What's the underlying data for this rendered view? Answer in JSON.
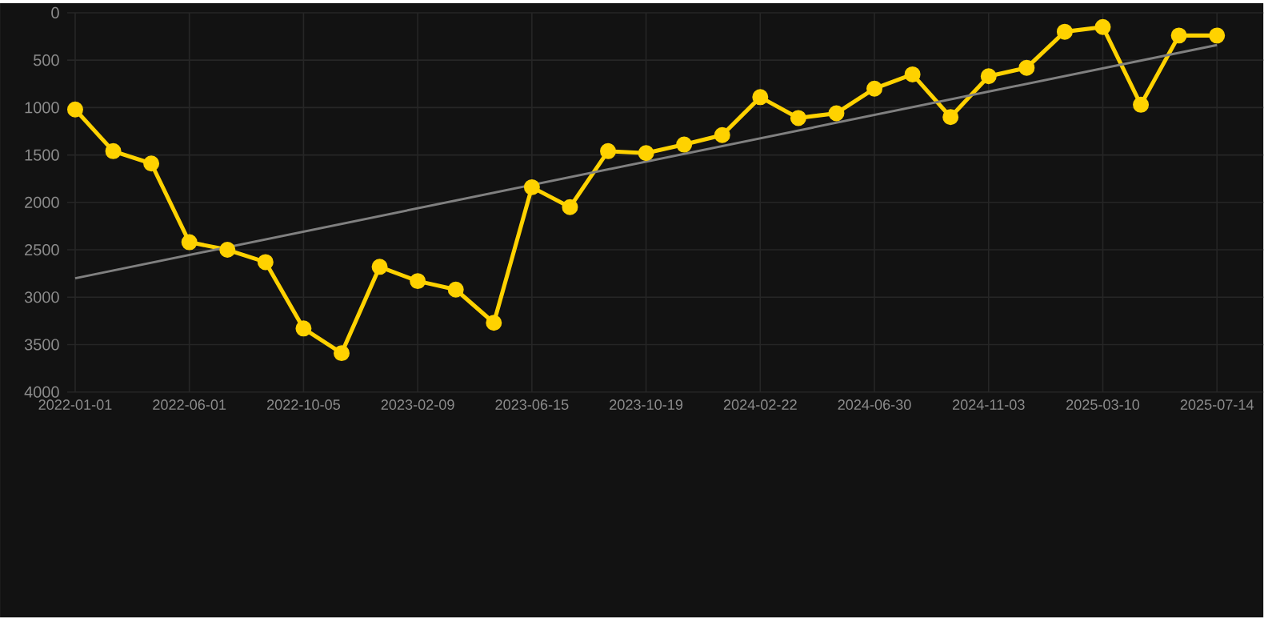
{
  "chart_data": {
    "type": "line",
    "categories": [
      "2022-01-01",
      null,
      null,
      "2022-06-01",
      null,
      null,
      "2022-10-05",
      null,
      null,
      "2023-02-09",
      null,
      null,
      "2023-06-15",
      null,
      null,
      "2023-10-19",
      null,
      null,
      "2024-02-22",
      null,
      null,
      "2024-06-30",
      null,
      null,
      "2024-11-03",
      null,
      null,
      "2025-03-10",
      null,
      null,
      "2025-07-14"
    ],
    "series": [
      {
        "color": "#ffd200",
        "marker": "circle",
        "values": [
          1020,
          1460,
          1590,
          2420,
          2500,
          2630,
          3330,
          3590,
          2680,
          2830,
          2920,
          3270,
          1840,
          2050,
          1460,
          1480,
          1390,
          1290,
          890,
          1110,
          1060,
          800,
          650,
          1100,
          670,
          580,
          200,
          150,
          970,
          240,
          240
        ]
      },
      {
        "type": "line",
        "color": "#808080",
        "marker": "none",
        "values": [
          2800,
          null,
          null,
          null,
          null,
          null,
          null,
          null,
          null,
          null,
          null,
          null,
          null,
          null,
          null,
          null,
          null,
          null,
          null,
          null,
          null,
          null,
          null,
          null,
          null,
          null,
          null,
          null,
          null,
          null,
          340
        ]
      }
    ],
    "ylim": [
      4000,
      0
    ],
    "yticks": [
      0,
      500,
      1000,
      1500,
      2000,
      2500,
      3000,
      3500,
      4000
    ],
    "grid": true
  }
}
